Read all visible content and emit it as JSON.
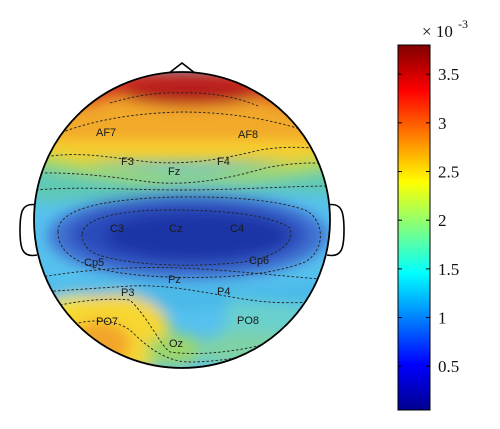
{
  "electrodes": [
    {
      "label": "AF7"
    },
    {
      "label": "AF8"
    },
    {
      "label": "F3"
    },
    {
      "label": "Fz"
    },
    {
      "label": "F4"
    },
    {
      "label": "C3"
    },
    {
      "label": "Cz"
    },
    {
      "label": "C4"
    },
    {
      "label": "Cp5"
    },
    {
      "label": "Cp6"
    },
    {
      "label": "P3"
    },
    {
      "label": "Pz"
    },
    {
      "label": "P4"
    },
    {
      "label": "PO7"
    },
    {
      "label": "PO8"
    },
    {
      "label": "Oz"
    }
  ],
  "colorbar": {
    "multiplier_base": "× 10",
    "multiplier_exp": "-3",
    "min": 0.05,
    "max": 3.8,
    "ticks": [
      "3.5",
      "3",
      "2.5",
      "2",
      "1.5",
      "1",
      "0.5"
    ],
    "colormap": "jet"
  }
}
